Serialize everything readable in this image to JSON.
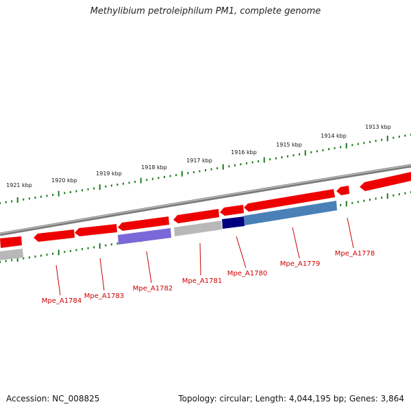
{
  "title": "Methylibium petroleiphilum PM1, complete genome",
  "accession": "Accession: NC_008825",
  "summary": "Topology: circular; Length: 4,044,195 bp; Genes: 3,864",
  "colors": {
    "forward_gene": "#ee0000",
    "reverse_gene_grey": "#b8b8b8",
    "reverse_gene_purple": "#7a68d8",
    "reverse_gene_navy": "#000080",
    "reverse_gene_steel": "#4a80b8",
    "scale_ticks": "#1a7a1a",
    "backbone": "#808080",
    "label": "#cc0000"
  },
  "scale": {
    "ticks": [
      "1921 kbp",
      "1920 kbp",
      "1919 kbp",
      "1918 kbp",
      "1917 kbp",
      "1916 kbp",
      "1915 kbp",
      "1914 kbp",
      "1913 kbp"
    ]
  },
  "genes": {
    "labels": [
      "Mpe_A1784",
      "Mpe_A1783",
      "Mpe_A1782",
      "Mpe_A1781",
      "Mpe_A1780",
      "Mpe_A1779",
      "Mpe_A1778"
    ]
  }
}
